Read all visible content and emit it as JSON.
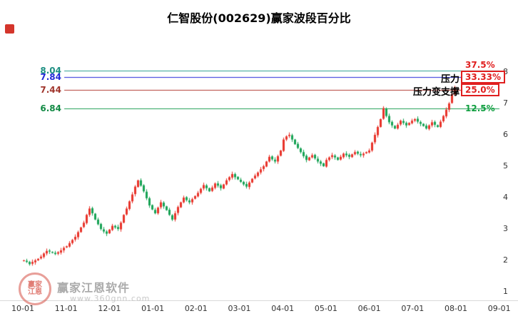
{
  "watermark": {
    "brand": "赢家江恩软件",
    "url": "www.360gnn.com",
    "seal_line1": "赢家",
    "seal_line2": "江恩"
  },
  "chart_data": {
    "type": "candlestick",
    "title": "仁智股份(002629)赢家波段百分比",
    "ylim": [
      0.75,
      8.4
    ],
    "y_ticks": [
      1,
      2,
      3,
      4,
      5,
      6,
      7,
      8
    ],
    "x_tick_labels": [
      "10-01",
      "11-01",
      "12-01",
      "01-01",
      "02-01",
      "03-01",
      "04-01",
      "05-01",
      "06-01",
      "07-01",
      "08-01",
      "09-01"
    ],
    "colors": {
      "up": "#e8332a",
      "down": "#17a254",
      "axis_text": "#333333"
    },
    "hlines": [
      {
        "price": 8.04,
        "price_label": "8.04",
        "pct_label": "37.5%",
        "line_color": "#2a9d8f",
        "label_color": "#1d8f82",
        "pct_color": "#e01f1f",
        "boxed": false
      },
      {
        "price": 7.84,
        "price_label": "7.84",
        "pct_label": "33.33%",
        "line_color": "#2429d8",
        "label_color": "#2429d8",
        "pct_color": "#e01f1f",
        "boxed": true
      },
      {
        "price": 7.44,
        "price_label": "7.44",
        "pct_label": "25.0%",
        "line_color": "#b03a30",
        "label_color": "#a0352c",
        "pct_color": "#e01f1f",
        "boxed": true
      },
      {
        "price": 6.84,
        "price_label": "6.84",
        "pct_label": "12.5%",
        "line_color": "#1e9e52",
        "label_color": "#128a44",
        "pct_color": "#0f9e3f",
        "boxed": false
      }
    ],
    "annotations": [
      {
        "text": "压力",
        "attach_price": 7.84
      },
      {
        "text": "压力变支撑",
        "attach_price": 7.44
      }
    ],
    "first_open": 1.98,
    "closes": [
      2.0,
      1.95,
      1.88,
      1.95,
      2.0,
      2.05,
      2.12,
      2.22,
      2.3,
      2.28,
      2.24,
      2.2,
      2.26,
      2.32,
      2.4,
      2.45,
      2.55,
      2.65,
      2.75,
      2.9,
      3.05,
      3.2,
      3.45,
      3.65,
      3.5,
      3.3,
      3.15,
      3.0,
      2.92,
      2.85,
      2.98,
      3.1,
      3.05,
      3.0,
      3.2,
      3.45,
      3.65,
      3.88,
      4.1,
      4.35,
      4.55,
      4.38,
      4.2,
      3.98,
      3.75,
      3.62,
      3.5,
      3.68,
      3.85,
      3.72,
      3.6,
      3.45,
      3.3,
      3.5,
      3.7,
      3.85,
      4.0,
      3.92,
      3.85,
      3.95,
      4.05,
      4.15,
      4.28,
      4.4,
      4.3,
      4.2,
      4.32,
      4.45,
      4.38,
      4.3,
      4.42,
      4.55,
      4.65,
      4.75,
      4.65,
      4.58,
      4.5,
      4.42,
      4.35,
      4.48,
      4.6,
      4.7,
      4.8,
      4.9,
      5.0,
      5.15,
      5.3,
      5.22,
      5.15,
      5.32,
      5.5,
      5.85,
      5.95,
      6.0,
      5.85,
      5.7,
      5.58,
      5.45,
      5.32,
      5.2,
      5.28,
      5.35,
      5.25,
      5.15,
      5.08,
      5.0,
      5.2,
      5.28,
      5.35,
      5.28,
      5.2,
      5.3,
      5.4,
      5.35,
      5.3,
      5.38,
      5.45,
      5.4,
      5.35,
      5.4,
      5.45,
      5.5,
      5.75,
      6.0,
      6.25,
      6.5,
      6.85,
      6.6,
      6.4,
      6.3,
      6.2,
      6.32,
      6.45,
      6.38,
      6.3,
      6.38,
      6.45,
      6.5,
      6.42,
      6.35,
      6.28,
      6.2,
      6.3,
      6.4,
      6.32,
      6.25,
      6.42,
      6.6,
      6.8,
      7.0,
      7.3,
      7.5
    ]
  }
}
